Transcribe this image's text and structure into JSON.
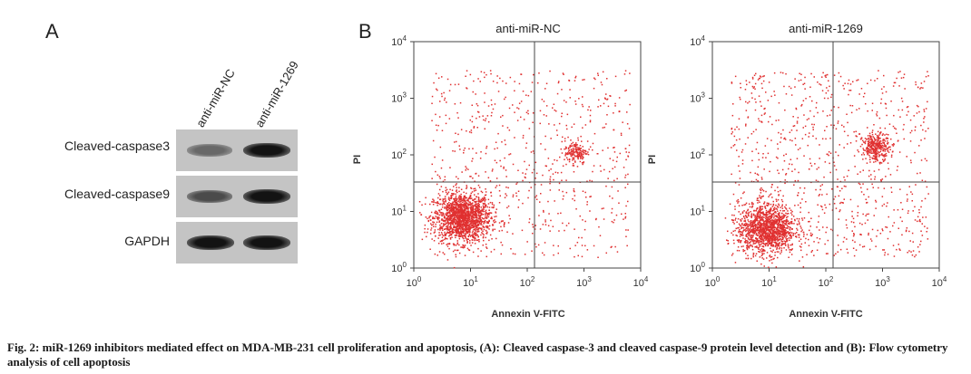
{
  "panel_a": {
    "letter": "A",
    "lanes": [
      "anti-miR-NC",
      "anti-miR-1269"
    ],
    "proteins": [
      {
        "name": "Cleaved-caspase3",
        "intensity": [
          0.45,
          0.95
        ]
      },
      {
        "name": "Cleaved-caspase9",
        "intensity": [
          0.62,
          0.95
        ]
      },
      {
        "name": "GAPDH",
        "intensity": [
          0.95,
          0.95
        ]
      }
    ]
  },
  "panel_b": {
    "letter": "B",
    "color": "#e03030",
    "plots": [
      {
        "title": "anti-miR-NC",
        "xlabel": "Annexin V-FITC",
        "ylabel": "PI"
      },
      {
        "title": "anti-miR-1269",
        "xlabel": "Annexin V-FITC",
        "ylabel": "PI"
      }
    ]
  },
  "chart_data": [
    {
      "type": "scatter",
      "title": "anti-miR-NC",
      "xlabel": "Annexin V-FITC",
      "ylabel": "PI",
      "x_scale": "log",
      "y_scale": "log",
      "xlim": [
        1,
        10000
      ],
      "ylim": [
        1,
        10000
      ],
      "x_ticks": [
        "10^0",
        "10^1",
        "10^2",
        "10^3",
        "10^4"
      ],
      "y_ticks": [
        "10^0",
        "10^1",
        "10^2",
        "10^3",
        "10^4"
      ],
      "quadrant_gate": {
        "x": 140,
        "y": 35
      },
      "clusters": [
        {
          "name": "viable",
          "center": [
            7,
            8
          ],
          "log_spread": [
            0.25,
            0.22
          ],
          "relative_density": 0.62
        },
        {
          "name": "late apoptotic",
          "center": [
            700,
            115
          ],
          "log_spread": [
            0.1,
            0.1
          ],
          "relative_density": 0.06
        }
      ],
      "scatter_background": true
    },
    {
      "type": "scatter",
      "title": "anti-miR-1269",
      "xlabel": "Annexin V-FITC",
      "ylabel": "PI",
      "x_scale": "log",
      "y_scale": "log",
      "xlim": [
        1,
        10000
      ],
      "ylim": [
        1,
        10000
      ],
      "x_ticks": [
        "10^0",
        "10^1",
        "10^2",
        "10^3",
        "10^4"
      ],
      "y_ticks": [
        "10^0",
        "10^1",
        "10^2",
        "10^3",
        "10^4"
      ],
      "quadrant_gate": {
        "x": 140,
        "y": 35
      },
      "clusters": [
        {
          "name": "viable",
          "center": [
            9,
            5
          ],
          "log_spread": [
            0.25,
            0.22
          ],
          "relative_density": 0.52
        },
        {
          "name": "late apoptotic",
          "center": [
            750,
            140
          ],
          "log_spread": [
            0.12,
            0.12
          ],
          "relative_density": 0.12
        }
      ],
      "scatter_background": true
    }
  ],
  "caption": "Fig. 2: miR-1269 inhibitors mediated effect on MDA-MB-231 cell proliferation and apoptosis, (A): Cleaved caspase-3 and cleaved caspase-9 protein level detection and (B): Flow cytometry analysis of cell apoptosis"
}
